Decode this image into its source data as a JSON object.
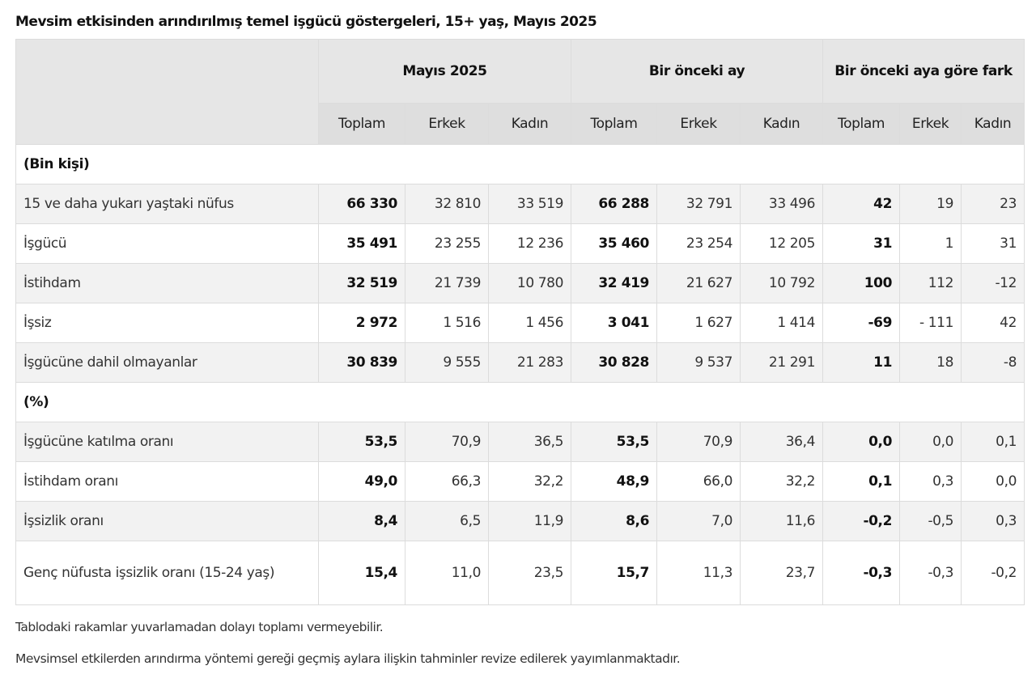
{
  "title": "Mevsim etkisinden arındırılmış temel işgücü göstergeleri, 15+ yaş, Mayıs 2025",
  "table": {
    "group_headers": [
      "Mayıs 2025",
      "Bir önceki ay",
      "Bir önceki aya göre fark"
    ],
    "sub_headers": [
      "Toplam",
      "Erkek",
      "Kadın",
      "Toplam",
      "Erkek",
      "Kadın",
      "Toplam",
      "Erkek",
      "Kadın"
    ],
    "sections": [
      {
        "label": "(Bin kişi)",
        "rows": [
          {
            "label": "15 ve daha yukarı yaştaki nüfus",
            "values": [
              "66 330",
              "32 810",
              "33 519",
              "66 288",
              "32 791",
              "33 496",
              "42",
              "19",
              "23"
            ]
          },
          {
            "label": "İşgücü",
            "values": [
              "35 491",
              "23 255",
              "12 236",
              "35 460",
              "23 254",
              "12 205",
              "31",
              "1",
              "31"
            ]
          },
          {
            "label": "İstihdam",
            "values": [
              "32 519",
              "21 739",
              "10 780",
              "32 419",
              "21 627",
              "10 792",
              "100",
              "112",
              "-12"
            ]
          },
          {
            "label": "İşsiz",
            "values": [
              "2 972",
              "1 516",
              "1 456",
              "3 041",
              "1 627",
              "1 414",
              "-69",
              "- 111",
              "42"
            ]
          },
          {
            "label": "İşgücüne dahil olmayanlar",
            "values": [
              "30 839",
              "9 555",
              "21 283",
              "30 828",
              "9 537",
              "21 291",
              "11",
              "18",
              "-8"
            ]
          }
        ]
      },
      {
        "label": "(%)",
        "rows": [
          {
            "label": "İşgücüne katılma oranı",
            "values": [
              "53,5",
              "70,9",
              "36,5",
              "53,5",
              "70,9",
              "36,4",
              "0,0",
              "0,0",
              "0,1"
            ]
          },
          {
            "label": "İstihdam oranı",
            "values": [
              "49,0",
              "66,3",
              "32,2",
              "48,9",
              "66,0",
              "32,2",
              "0,1",
              "0,3",
              "0,0"
            ]
          },
          {
            "label": "İşsizlik oranı",
            "values": [
              "8,4",
              "6,5",
              "11,9",
              "8,6",
              "7,0",
              "11,6",
              "-0,2",
              "-0,5",
              "0,3"
            ]
          },
          {
            "label": "Genç nüfusta işsizlik oranı (15-24 yaş)",
            "values": [
              "15,4",
              "11,0",
              "23,5",
              "15,7",
              "11,3",
              "23,7",
              "-0,3",
              "-0,3",
              "-0,2"
            ]
          }
        ]
      }
    ]
  },
  "notes": [
    "Tablodaki rakamlar yuvarlamadan dolayı toplamı vermeyebilir.",
    "Mevsimsel etkilerden arındırma yöntemi gereği geçmiş aylara ilişkin tahminler revize edilerek yayımlanmaktadır."
  ]
}
